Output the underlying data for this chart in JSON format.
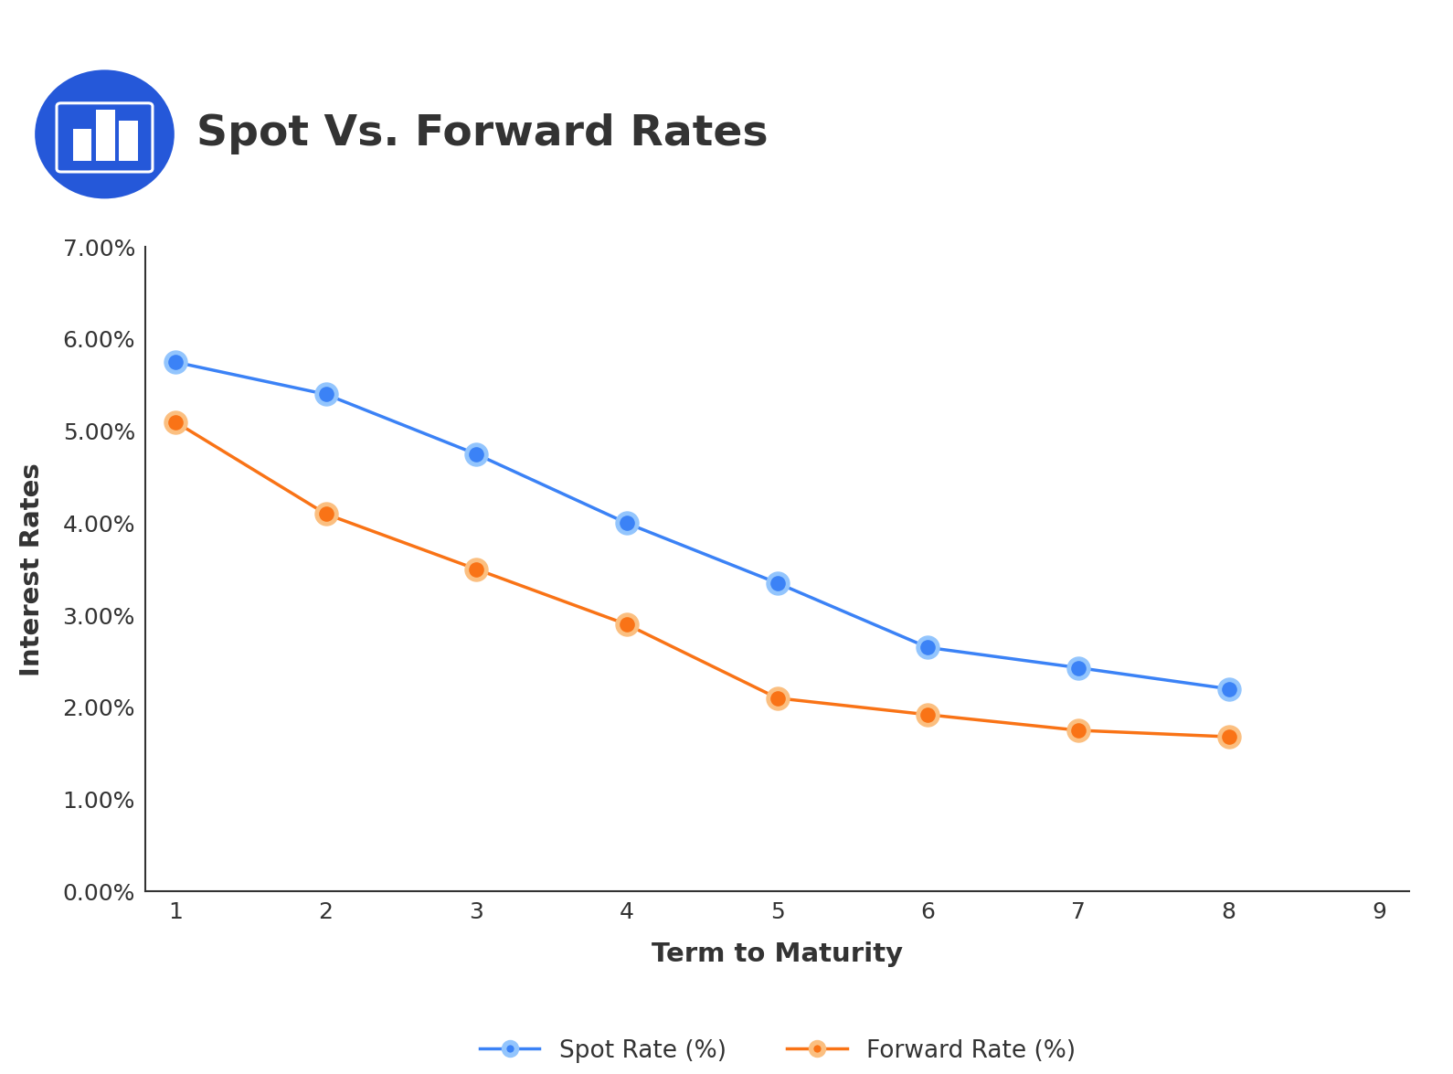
{
  "title": "Spot Vs. Forward Rates",
  "xlabel": "Term to Maturity",
  "ylabel": "Interest Rates",
  "x_values": [
    1,
    2,
    3,
    4,
    5,
    6,
    7,
    8
  ],
  "spot_rates": [
    0.0575,
    0.054,
    0.0475,
    0.04,
    0.0335,
    0.0265,
    0.0243,
    0.022
  ],
  "forward_rates": [
    0.051,
    0.041,
    0.035,
    0.029,
    0.021,
    0.0192,
    0.0175,
    0.0168
  ],
  "spot_color": "#3B82F6",
  "spot_marker_outer_color": "#93C5FD",
  "forward_color": "#F97316",
  "forward_marker_outer_color": "#FBBF80",
  "background_color": "#FFFFFF",
  "axis_color": "#333333",
  "ylim": [
    0.0,
    0.07
  ],
  "xlim": [
    0.8,
    9.2
  ],
  "ytick_labels": [
    "0.00%",
    "1.00%",
    "2.00%",
    "3.00%",
    "4.00%",
    "5.00%",
    "6.00%",
    "7.00%"
  ],
  "ytick_values": [
    0.0,
    0.01,
    0.02,
    0.03,
    0.04,
    0.05,
    0.06,
    0.07
  ],
  "xtick_values": [
    1,
    2,
    3,
    4,
    5,
    6,
    7,
    8,
    9
  ],
  "legend_spot_label": "Spot Rate (%)",
  "legend_forward_label": "Forward Rate (%)",
  "title_fontsize": 34,
  "axis_label_fontsize": 21,
  "tick_fontsize": 18,
  "legend_fontsize": 19,
  "icon_bg_color_top": "#1D4ED8",
  "icon_bg_color_bot": "#3B82F6",
  "line_width": 2.5,
  "marker_size": 10,
  "marker_outer_size": 18
}
